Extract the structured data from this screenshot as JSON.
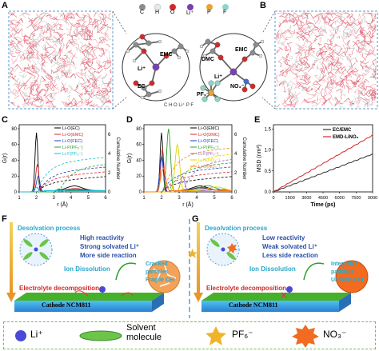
{
  "panels": {
    "A": "A",
    "B": "B",
    "C": "C",
    "D": "D",
    "E": "E",
    "F": "F",
    "G": "G"
  },
  "atom_legend": [
    "C",
    "H",
    "O",
    "Li⁺",
    "P",
    "F"
  ],
  "atom_legend2": "C  H  O  Li⁺  P  F",
  "cluster1": {
    "emc": "EMC",
    "li": "Li⁺",
    "ec": "EC"
  },
  "cluster2": {
    "dmc": "DMC",
    "emc": "EMC",
    "li": "Li⁺",
    "no3": "NO₃⁻",
    "pf6": "PF₆⁻"
  },
  "colors": {
    "C": "#8c8c8c",
    "H": "#e8e8e8",
    "O": "#d62728",
    "Li": "#7b3fb5",
    "P": "#e8a33a",
    "F": "#8fd6c9",
    "accent": "#5b9bd5",
    "electrode": "#46b02b"
  },
  "chart_data": [
    {
      "type": "line",
      "panel": "C",
      "xlabel": "r (Å)",
      "ylabel": "G(r)",
      "ylabel2": "Cumulative Number",
      "xticks": [
        1,
        2,
        3,
        4,
        5,
        6
      ],
      "yticks_left": [
        0,
        20,
        40,
        60,
        80
      ],
      "yticks_right": [
        0,
        2,
        4,
        6
      ],
      "series": [
        {
          "name": "Li-O(EC)",
          "color": "#000000",
          "peak_x": 2.0,
          "peak_y": 75
        },
        {
          "name": "Li-O(EMC)",
          "color": "#d62728",
          "peak_x": 2.05,
          "peak_y": 35
        },
        {
          "name": "Li-O(FEC)",
          "color": "#1f3fbf",
          "peak_x": 2.1,
          "peak_y": 20
        },
        {
          "name": "Li-P(PF₆⁻)",
          "color": "#2ca02c",
          "peak_x": 3.3,
          "peak_y": 4
        },
        {
          "name": "Li-F(PF₆⁻)",
          "color": "#17becf",
          "peak_x": 2.0,
          "peak_y": 6
        }
      ]
    },
    {
      "type": "line",
      "panel": "D",
      "xlabel": "r (Å)",
      "ylabel": "G(r)",
      "ylabel2": "Cumulative Number",
      "xticks": [
        1,
        2,
        3,
        4,
        5,
        6
      ],
      "yticks_left": [
        0,
        20,
        40,
        60,
        80
      ],
      "yticks_right": [
        0,
        2,
        4,
        6
      ],
      "series": [
        {
          "name": "Li-O(EMC)",
          "color": "#000000",
          "peak_x": 2.0,
          "peak_y": 75
        },
        {
          "name": "Li-O(DMC)",
          "color": "#d62728",
          "peak_x": 2.05,
          "peak_y": 55
        },
        {
          "name": "Li-O(FEC)",
          "color": "#1f3fbf",
          "peak_x": 2.0,
          "peak_y": 45
        },
        {
          "name": "Li-P(PF₆⁻)",
          "color": "#2ca02c",
          "peak_x": 2.4,
          "peak_y": 80
        },
        {
          "name": "Li-F(PF₆⁻)",
          "color": "#9467bd",
          "peak_x": 3.2,
          "peak_y": 20
        },
        {
          "name": "Li-N(NO₃⁻)",
          "color": "#e0d400",
          "peak_x": 2.9,
          "peak_y": 60
        },
        {
          "name": "Li-O(NO₃⁻)",
          "color": "#ff7f0e",
          "peak_x": 2.1,
          "peak_y": 30
        }
      ]
    },
    {
      "type": "line",
      "panel": "E",
      "xlabel": "Time (ps)",
      "ylabel": "MSD (nm²)",
      "xticks": [
        0,
        1500,
        3000,
        4500,
        6000,
        7500,
        9000
      ],
      "yticks": [
        0,
        0.5,
        1.0,
        1.5
      ],
      "xlim": [
        0,
        9000
      ],
      "ylim": [
        0,
        1.6
      ],
      "series": [
        {
          "name": "EC/EMC",
          "color": "#333333",
          "x": [
            0,
            9000
          ],
          "y": [
            0,
            0.9
          ]
        },
        {
          "name": "EMD-LiNO₃",
          "color": "#d62728",
          "x": [
            0,
            9000
          ],
          "y": [
            0,
            1.35
          ]
        }
      ]
    }
  ],
  "panelF": {
    "desolvation": "Desolvation process",
    "bullets": [
      "High reactivity",
      "Strong solvated Li⁺",
      "More side reaction"
    ],
    "ion_dissolution": "Ion Dissolution",
    "decomp": "Electrolyte decomposition",
    "cathode": "Cathode NCM811",
    "particles": [
      "Cracked",
      "particles",
      "Fragile CEI"
    ]
  },
  "panelG": {
    "desolvation": "Desolvation process",
    "bullets": [
      "Low reactivity",
      "Weak solvated Li⁺",
      "Less side reaction"
    ],
    "ion_dissolution": "Ion Dissolution",
    "decomp": "Electrolyte decomposition",
    "cathode": "Cathode NCM811",
    "particles": [
      "Integrated",
      "particles",
      "Uniform CEI"
    ]
  },
  "legend_bottom": {
    "li": "Li⁺",
    "solvent": "Solvent\nmolecule",
    "pf6": "PF₆⁻",
    "no3": "NO₃⁻"
  }
}
